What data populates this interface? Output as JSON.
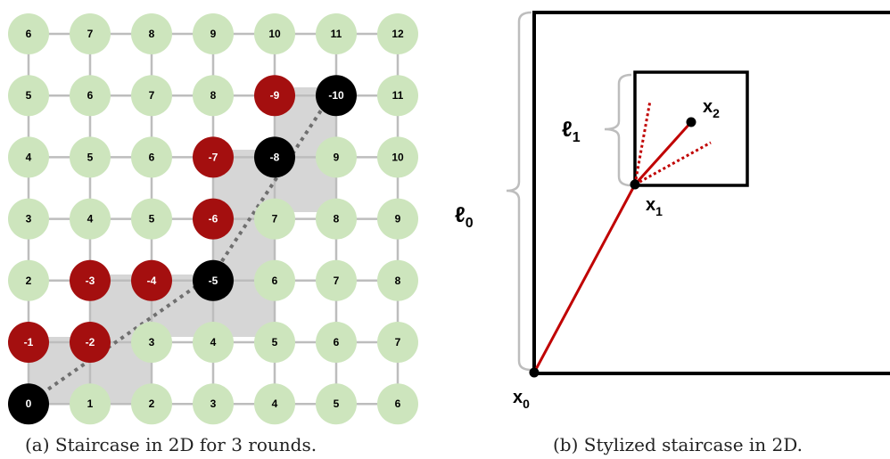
{
  "left_panel": {
    "caption": "(a) Staircase in 2D for 3 rounds.",
    "grid_rows": [
      [
        {
          "v": "6",
          "c": "green"
        },
        {
          "v": "7",
          "c": "green"
        },
        {
          "v": "8",
          "c": "green"
        },
        {
          "v": "9",
          "c": "green"
        },
        {
          "v": "10",
          "c": "green"
        },
        {
          "v": "11",
          "c": "green"
        },
        {
          "v": "12",
          "c": "green"
        }
      ],
      [
        {
          "v": "5",
          "c": "green"
        },
        {
          "v": "6",
          "c": "green"
        },
        {
          "v": "7",
          "c": "green"
        },
        {
          "v": "8",
          "c": "green"
        },
        {
          "v": "-9",
          "c": "red"
        },
        {
          "v": "-10",
          "c": "black"
        },
        {
          "v": "11",
          "c": "green"
        }
      ],
      [
        {
          "v": "4",
          "c": "green"
        },
        {
          "v": "5",
          "c": "green"
        },
        {
          "v": "6",
          "c": "green"
        },
        {
          "v": "-7",
          "c": "red"
        },
        {
          "v": "-8",
          "c": "black"
        },
        {
          "v": "9",
          "c": "green"
        },
        {
          "v": "10",
          "c": "green"
        }
      ],
      [
        {
          "v": "3",
          "c": "green"
        },
        {
          "v": "4",
          "c": "green"
        },
        {
          "v": "5",
          "c": "green"
        },
        {
          "v": "-6",
          "c": "red"
        },
        {
          "v": "7",
          "c": "green"
        },
        {
          "v": "8",
          "c": "green"
        },
        {
          "v": "9",
          "c": "green"
        }
      ],
      [
        {
          "v": "2",
          "c": "green"
        },
        {
          "v": "-3",
          "c": "red"
        },
        {
          "v": "-4",
          "c": "red"
        },
        {
          "v": "-5",
          "c": "black"
        },
        {
          "v": "6",
          "c": "green"
        },
        {
          "v": "7",
          "c": "green"
        },
        {
          "v": "8",
          "c": "green"
        }
      ],
      [
        {
          "v": "-1",
          "c": "red"
        },
        {
          "v": "-2",
          "c": "red"
        },
        {
          "v": "3",
          "c": "green"
        },
        {
          "v": "4",
          "c": "green"
        },
        {
          "v": "5",
          "c": "green"
        },
        {
          "v": "6",
          "c": "green"
        },
        {
          "v": "7",
          "c": "green"
        }
      ],
      [
        {
          "v": "0",
          "c": "black"
        },
        {
          "v": "1",
          "c": "green"
        },
        {
          "v": "2",
          "c": "green"
        },
        {
          "v": "3",
          "c": "green"
        },
        {
          "v": "4",
          "c": "green"
        },
        {
          "v": "5",
          "c": "green"
        },
        {
          "v": "6",
          "c": "green"
        }
      ]
    ],
    "colors": {
      "green": "#cde5bd",
      "red": "#a40f0f",
      "black": "#000000",
      "grid_line": "#bdbdbd",
      "shade": "#d6d6d6",
      "path": "#6f6f6f"
    }
  },
  "right_panel": {
    "caption": "(b) Stylized staircase in 2D.",
    "labels": {
      "l0": "ℓ",
      "l0_sub": "0",
      "l1": "ℓ",
      "l1_sub": "1",
      "x0": "x",
      "x0_sub": "0",
      "x1": "x",
      "x1_sub": "1",
      "x2": "x",
      "x2_sub": "2"
    },
    "colors": {
      "line": "#c00000",
      "box": "#000000",
      "brace": "#bdbdbd"
    }
  }
}
